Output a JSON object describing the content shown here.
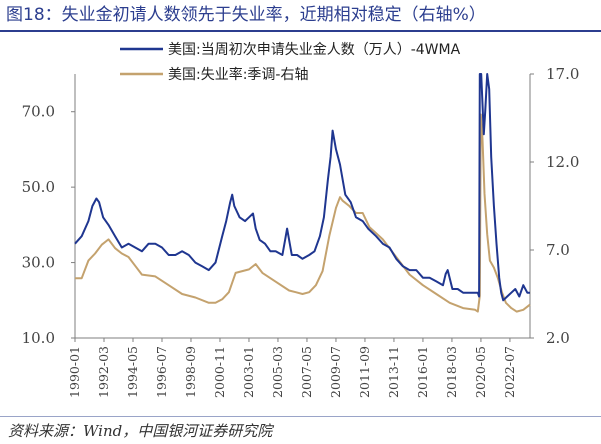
{
  "figure": {
    "title": "图18：失业金初请人数领先于失业率，近期相对稳定（右轴%）",
    "source": "资料来源：Wind，中国银河证券研究院"
  },
  "colors": {
    "series1": "#1f3690",
    "series2": "#c4a26e",
    "title": "#2c3e8f",
    "axis": "#7f7f7f"
  },
  "chart_data": {
    "type": "line",
    "title": "",
    "legend_position": "top-right",
    "grid": false,
    "x_ticks": [
      "1990-01",
      "1992-03",
      "1994-05",
      "1996-07",
      "1998-09",
      "2000-11",
      "2003-01",
      "2005-03",
      "2007-05",
      "2009-07",
      "2011-09",
      "2013-11",
      "2016-01",
      "2018-03",
      "2020-05",
      "2022-07"
    ],
    "y_left": {
      "ylim": [
        10,
        80
      ],
      "ticks": [
        "10.0",
        "30.0",
        "50.0",
        "70.0"
      ]
    },
    "y_right": {
      "ylim": [
        2,
        17
      ],
      "ticks": [
        "2.0",
        "7.0",
        "12.0",
        "17.0"
      ]
    },
    "series": [
      {
        "name": "美国:当周初次申请失业金人数（万人）-4WMA",
        "axis": "left",
        "x": [
          1990.0,
          1990.5,
          1991.0,
          1991.3,
          1991.6,
          1991.8,
          1992.1,
          1992.5,
          1993.0,
          1993.5,
          1994.0,
          1994.5,
          1995.0,
          1995.5,
          1996.0,
          1996.5,
          1997.0,
          1997.5,
          1998.0,
          1998.5,
          1999.0,
          1999.5,
          2000.0,
          2000.5,
          2001.0,
          2001.3,
          2001.6,
          2001.75,
          2001.9,
          2002.3,
          2002.7,
          2003.0,
          2003.3,
          2003.5,
          2003.8,
          2004.2,
          2004.6,
          2005.0,
          2005.5,
          2005.7,
          2005.85,
          2006.2,
          2006.6,
          2007.0,
          2007.5,
          2007.9,
          2008.3,
          2008.6,
          2008.9,
          2009.1,
          2009.25,
          2009.5,
          2009.8,
          2010.2,
          2010.6,
          2011.0,
          2011.5,
          2011.9,
          2012.5,
          2013.0,
          2013.5,
          2014.0,
          2014.5,
          2015.0,
          2015.5,
          2016.0,
          2016.5,
          2017.0,
          2017.5,
          2017.7,
          2017.85,
          2018.2,
          2018.6,
          2019.0,
          2019.5,
          2019.9,
          2020.1,
          2020.2,
          2020.25,
          2020.35,
          2020.45,
          2020.55,
          2020.65,
          2020.8,
          2020.95,
          2021.1,
          2021.3,
          2021.5,
          2021.7,
          2021.85,
          2022.0,
          2022.3,
          2022.6,
          2022.9,
          2023.2,
          2023.5,
          2023.8,
          2024.0
        ],
        "values": [
          35,
          37,
          41,
          45,
          47,
          46,
          42,
          40,
          37,
          34,
          35,
          34,
          33,
          35,
          35,
          34,
          32,
          32,
          33,
          32,
          30,
          29,
          28,
          30,
          37,
          41,
          46,
          48,
          45,
          42,
          41,
          42,
          43,
          39,
          36,
          35,
          33,
          33,
          32,
          36,
          39,
          32,
          32,
          31,
          32,
          33,
          37,
          42,
          52,
          58,
          65,
          60,
          56,
          48,
          46,
          42,
          41,
          39,
          37,
          35,
          34,
          31,
          29,
          28,
          28,
          26,
          26,
          25,
          24,
          27,
          28,
          23,
          23,
          22,
          22,
          22,
          22,
          21,
          80,
          80,
          72,
          64,
          70,
          80,
          76,
          58,
          45,
          35,
          26,
          22,
          20,
          21,
          22,
          23,
          21,
          24,
          22,
          22
        ]
      },
      {
        "name": "美国:失业率:季调-右轴",
        "axis": "right",
        "x": [
          1990.0,
          1990.5,
          1991.0,
          1991.5,
          1992.0,
          1992.5,
          1993.0,
          1993.5,
          1994.0,
          1994.5,
          1995.0,
          1996.0,
          1997.0,
          1998.0,
          1999.0,
          2000.0,
          2000.5,
          2001.0,
          2001.5,
          2002.0,
          2002.5,
          2003.0,
          2003.5,
          2004.0,
          2005.0,
          2006.0,
          2006.5,
          2007.0,
          2007.5,
          2008.0,
          2008.5,
          2009.0,
          2009.5,
          2009.8,
          2010.0,
          2010.5,
          2011.0,
          2011.5,
          2012.0,
          2013.0,
          2014.0,
          2015.0,
          2016.0,
          2017.0,
          2018.0,
          2019.0,
          2019.9,
          2020.1,
          2020.25,
          2020.32,
          2020.45,
          2020.6,
          2020.8,
          2021.0,
          2021.3,
          2021.6,
          2021.9,
          2022.2,
          2022.6,
          2023.0,
          2023.5,
          2024.0
        ],
        "values": [
          5.4,
          5.4,
          6.4,
          6.8,
          7.3,
          7.6,
          7.1,
          6.8,
          6.6,
          6.1,
          5.6,
          5.5,
          5.0,
          4.5,
          4.3,
          4.0,
          4.0,
          4.2,
          4.6,
          5.7,
          5.8,
          5.9,
          6.2,
          5.7,
          5.2,
          4.7,
          4.6,
          4.5,
          4.6,
          5.0,
          5.8,
          7.8,
          9.4,
          10.0,
          9.8,
          9.5,
          9.1,
          9.1,
          8.3,
          7.6,
          6.6,
          5.6,
          5.0,
          4.5,
          4.0,
          3.7,
          3.6,
          3.5,
          4.4,
          14.7,
          13.3,
          10.2,
          7.9,
          6.4,
          6.0,
          5.4,
          4.6,
          4.0,
          3.7,
          3.5,
          3.6,
          3.9
        ]
      }
    ]
  }
}
